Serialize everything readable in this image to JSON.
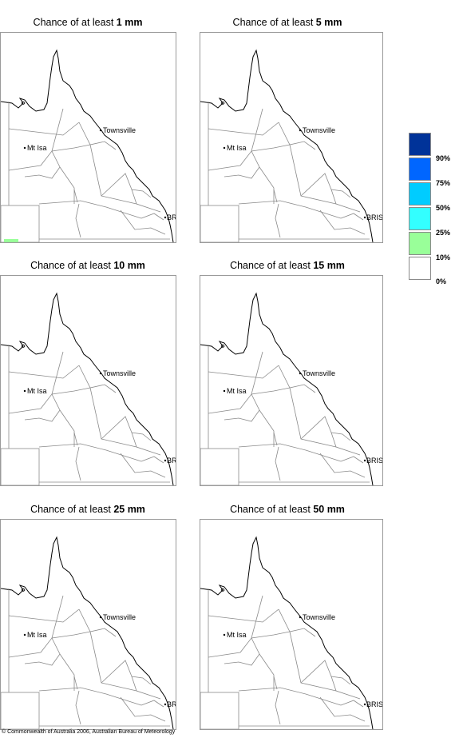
{
  "panels": [
    {
      "prefix": "Chance of at least",
      "amount": "1 mm"
    },
    {
      "prefix": "Chance of at least",
      "amount": "5 mm"
    },
    {
      "prefix": "Chance of at least",
      "amount": "10 mm"
    },
    {
      "prefix": "Chance of at least",
      "amount": "15 mm"
    },
    {
      "prefix": "Chance of at least",
      "amount": "25 mm"
    },
    {
      "prefix": "Chance of at least",
      "amount": "50 mm"
    }
  ],
  "places": {
    "townsville": "Townsville",
    "mt_isa": "Mt Isa",
    "brisbane": "BRIS"
  },
  "legend": {
    "labels": [
      "90%",
      "75%",
      "50%",
      "25%",
      "10%",
      "0%"
    ],
    "colors": [
      "#003399",
      "#0066ff",
      "#00ccff",
      "#33ffff",
      "#99ff99",
      "#ffffff"
    ]
  },
  "copyright": "© Commonwealth of Australia 2006, Australian Bureau of Meteorology"
}
